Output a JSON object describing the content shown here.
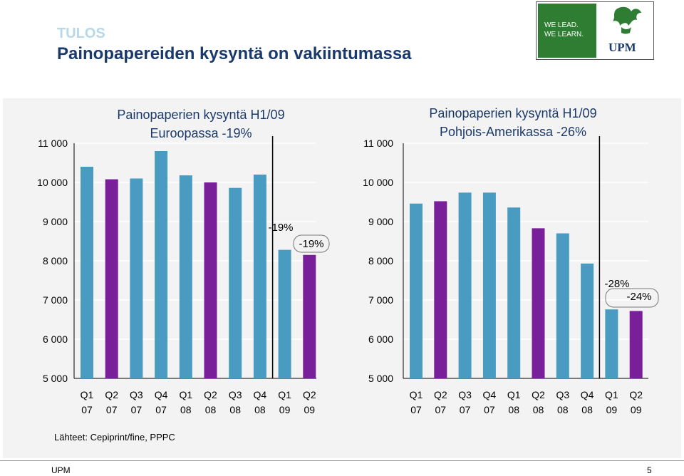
{
  "header": {
    "section": "TULOS",
    "title": "Painopapereiden kysyntä on vakiintumassa"
  },
  "logo": {
    "tagline_1": "WE LEAD.",
    "tagline_2": "WE LEARN.",
    "brand": "UPM",
    "colors": {
      "tagline_bg": "#2e7d32",
      "leaf": "#2e7d32",
      "brand_text": "#1a3a6b"
    }
  },
  "source": "Lähteet: Cepiprint/fine, PPPC",
  "footer": {
    "left": "UPM",
    "right": "5"
  },
  "colors": {
    "blue": "#4a9bc1",
    "purple": "#7a1f9a",
    "grid": "#ffffff",
    "text": "#000000"
  },
  "chart_data": [
    {
      "type": "bar",
      "title": "Painopaperien kysyntä H1/09\nEuroopassa -19%",
      "categories": [
        "Q1\n07",
        "Q2\n07",
        "Q3\n07",
        "Q4\n07",
        "Q1\n08",
        "Q2\n08",
        "Q3\n08",
        "Q4\n08",
        "Q1\n09",
        "Q2\n09"
      ],
      "values": [
        10400,
        10080,
        10100,
        10800,
        10180,
        10000,
        9860,
        10200,
        8280,
        8150
      ],
      "bar_colors": [
        "blue",
        "purple",
        "blue",
        "blue",
        "blue",
        "purple",
        "blue",
        "blue",
        "blue",
        "purple"
      ],
      "ylim": [
        5000,
        11000
      ],
      "yticks": [
        11000,
        10000,
        9000,
        8000,
        7000,
        6000,
        5000
      ],
      "ytick_labels": [
        "11 000",
        "10 000",
        "9 000",
        "8 000",
        "7 000",
        "6 000",
        "5 000"
      ],
      "grid": true,
      "annotations": [
        {
          "text": "-19%",
          "boxed": false
        },
        {
          "text": "-19%",
          "boxed": true
        }
      ]
    },
    {
      "type": "bar",
      "title": "Painopaperien kysyntä H1/09\nPohjois-Amerikassa -26%",
      "categories": [
        "Q1\n07",
        "Q2\n07",
        "Q3\n07",
        "Q4\n07",
        "Q1\n08",
        "Q2\n08",
        "Q3\n08",
        "Q4\n08",
        "Q1\n09",
        "Q2\n09"
      ],
      "values": [
        9460,
        9520,
        9740,
        9740,
        9360,
        8830,
        8700,
        7930,
        6760,
        6720
      ],
      "bar_colors": [
        "blue",
        "purple",
        "blue",
        "blue",
        "blue",
        "purple",
        "blue",
        "blue",
        "blue",
        "purple"
      ],
      "ylim": [
        5000,
        11000
      ],
      "yticks": [
        11000,
        10000,
        9000,
        8000,
        7000,
        6000,
        5000
      ],
      "ytick_labels": [
        "11 000",
        "10 000",
        "9 000",
        "8 000",
        "7 000",
        "6 000",
        "5 000"
      ],
      "grid": true,
      "annotations": [
        {
          "text": "-28%",
          "boxed": false
        },
        {
          "text": "-24%",
          "boxed": true
        }
      ]
    }
  ]
}
